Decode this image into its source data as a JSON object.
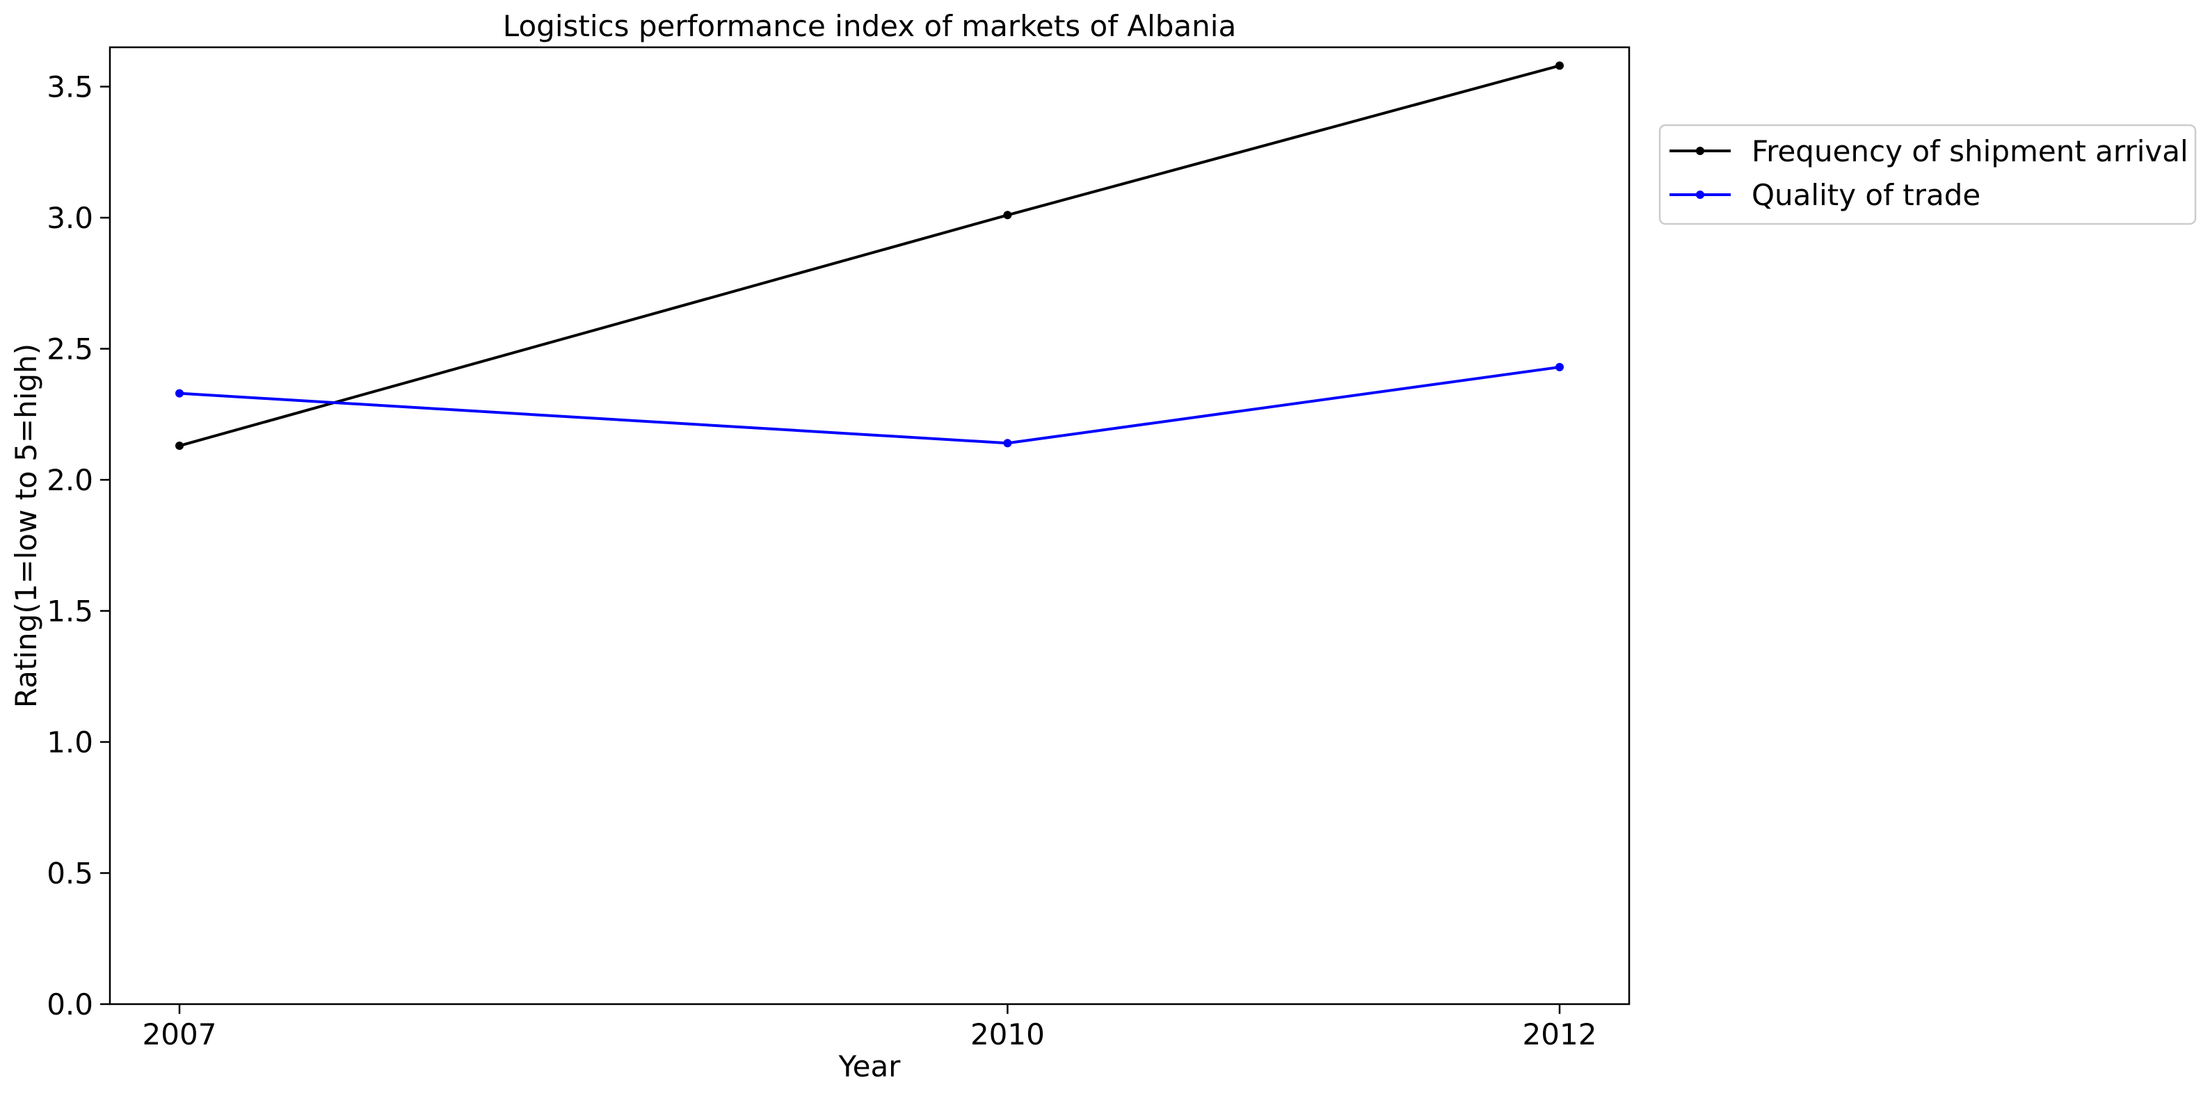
{
  "chart_data": {
    "type": "line",
    "title": "Logistics performance index of markets of Albania",
    "xlabel": "Year",
    "ylabel": "Rating(1=low to 5=high)",
    "x": [
      "2007",
      "2010",
      "2012"
    ],
    "ylim": [
      0,
      3.65
    ],
    "yticks": [
      "0.0",
      "0.5",
      "1.0",
      "1.5",
      "2.0",
      "2.5",
      "3.0",
      "3.5"
    ],
    "grid": false,
    "legend_position": "outside-top-right",
    "series": [
      {
        "name": "Frequency of shipment arrival",
        "color": "#000000",
        "marker": "dot",
        "values": [
          2.13,
          3.01,
          3.58
        ]
      },
      {
        "name": "Quality of trade",
        "color": "#0000ff",
        "marker": "dot",
        "values": [
          2.33,
          2.14,
          2.43
        ]
      }
    ]
  }
}
